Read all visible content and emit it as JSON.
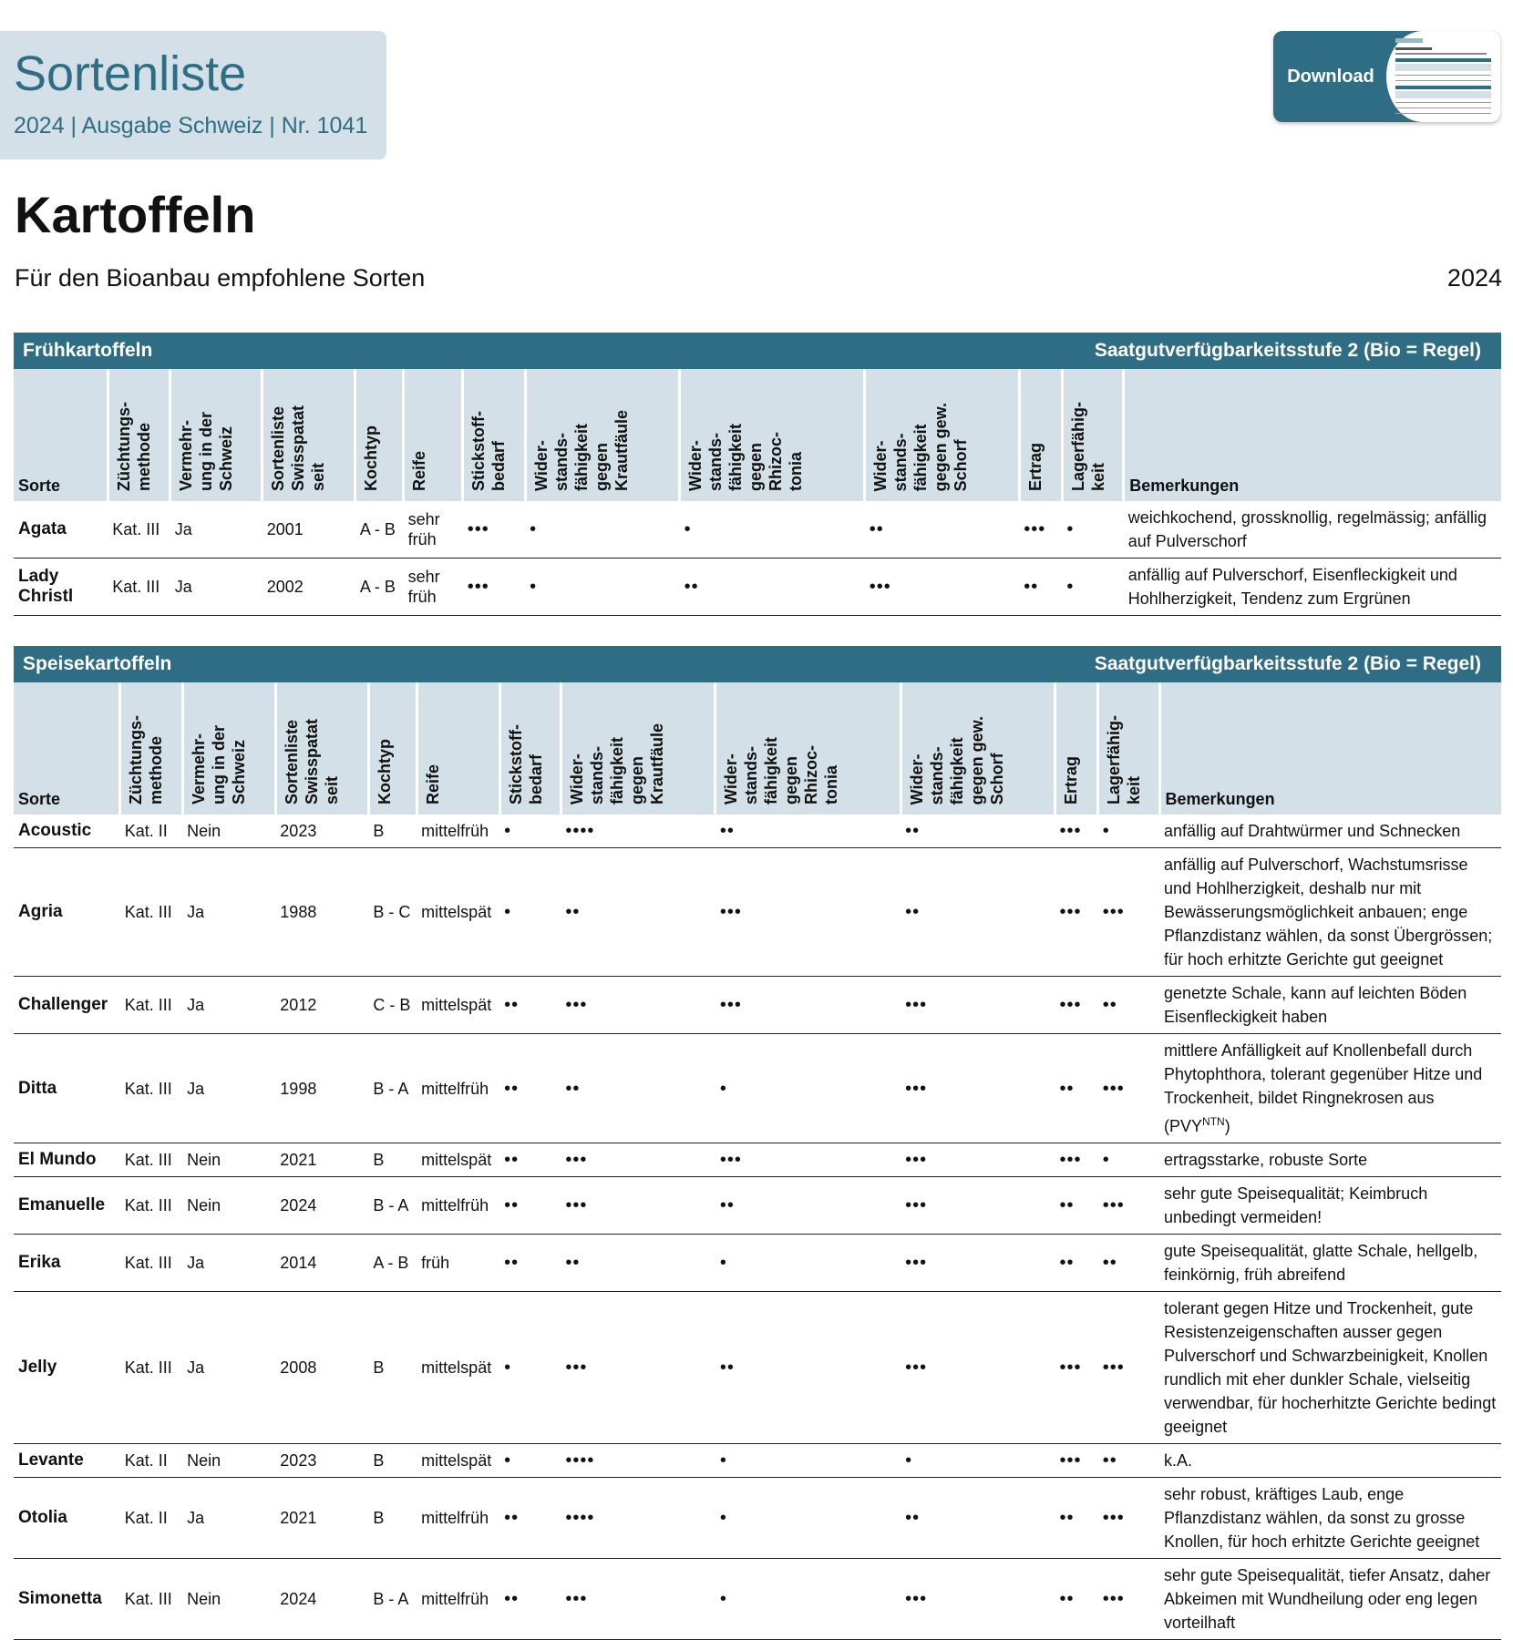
{
  "header": {
    "title": "Sortenliste",
    "subtitle": "2024 | Ausgabe Schweiz | Nr. 1041",
    "download": "Download"
  },
  "page": {
    "title": "Kartoffeln",
    "subtitle": "Für den Bioanbau empfohlene Sorten",
    "year": "2024"
  },
  "tables": [
    {
      "section": "Frühkartoffeln",
      "note": "Saatgutverfügbarkeitsstufe 2 (Bio = Regel)",
      "headers": [
        [
          "Sorte"
        ],
        [
          "Züchtungs-",
          "methode"
        ],
        [
          "Vermehr-",
          "ung in der",
          "Schweiz"
        ],
        [
          "Sortenliste",
          "Swisspatat",
          "seit"
        ],
        [
          "Kochtyp"
        ],
        [
          "Reife"
        ],
        [
          "Stickstoff-",
          "bedarf"
        ],
        [
          "Wider-",
          "stands-",
          "fähigkeit",
          "gegen",
          "Krautfäule"
        ],
        [
          "Wider-",
          "stands-",
          "fähigkeit",
          "gegen",
          "Rhizoc-",
          "tonia"
        ],
        [
          "Wider-",
          "stands-",
          "fähigkeit",
          "gegen gew.",
          "Schorf"
        ],
        [
          "Ertrag"
        ],
        [
          "Lagerfähig-",
          "keit"
        ],
        [
          "Bemerkungen"
        ]
      ],
      "rows": [
        [
          "Agata",
          "Kat. III",
          "Ja",
          "2001",
          "A - B",
          "sehr früh",
          "•••",
          "•",
          "•",
          "••",
          "•••",
          "•",
          "weichkochend, grossknollig, regelmässig; anfällig auf Pulverschorf"
        ],
        [
          "Lady Christl",
          "Kat. III",
          "Ja",
          "2002",
          "A - B",
          "sehr früh",
          "•••",
          "•",
          "••",
          "•••",
          "••",
          "•",
          "anfällig auf Pulverschorf, Eisenfleckigkeit und Hohlherzigkeit, Tendenz zum Ergrünen"
        ]
      ]
    },
    {
      "section": "Speisekartoffeln",
      "note": "Saatgutverfügbarkeitsstufe 2 (Bio = Regel)",
      "headers": [
        [
          "Sorte"
        ],
        [
          "Züchtungs-",
          "methode"
        ],
        [
          "Vermehr-",
          "ung in der",
          "Schweiz"
        ],
        [
          "Sortenliste",
          "Swisspatat",
          "seit"
        ],
        [
          "Kochtyp"
        ],
        [
          "Reife"
        ],
        [
          "Stickstoff-",
          "bedarf"
        ],
        [
          "Wider-",
          "stands-",
          "fähigkeit",
          "gegen",
          "Krautfäule"
        ],
        [
          "Wider-",
          "stands-",
          "fähigkeit",
          "gegen",
          "Rhizoc-",
          "tonia"
        ],
        [
          "Wider-",
          "stands-",
          "fähigkeit",
          "gegen gew.",
          "Schorf"
        ],
        [
          "Ertrag"
        ],
        [
          "Lagerfähig-",
          "keit"
        ],
        [
          "Bemerkungen"
        ]
      ],
      "rows": [
        [
          "Acoustic",
          "Kat. II",
          "Nein",
          "2023",
          "B",
          "mittelfrüh",
          "•",
          "••••",
          "••",
          "••",
          "•••",
          "•",
          "anfällig auf Drahtwürmer und Schnecken"
        ],
        [
          "Agria",
          "Kat. III",
          "Ja",
          "1988",
          "B - C",
          "mittelspät",
          "•",
          "••",
          "•••",
          "••",
          "•••",
          "•••",
          "anfällig auf Pulverschorf, Wachstumsrisse und Hohlherzigkeit, deshalb nur mit Bewässerungsmöglichkeit anbauen; enge Pflanzdistanz wählen, da sonst Übergrössen; für hoch erhitzte Gerichte gut geeignet"
        ],
        [
          "Challenger",
          "Kat. III",
          "Ja",
          "2012",
          "C - B",
          "mittelspät",
          "••",
          "•••",
          "•••",
          "•••",
          "•••",
          "••",
          "genetzte Schale, kann auf leichten Böden Eisenfleckigkeit haben"
        ],
        [
          "Ditta",
          "Kat. III",
          "Ja",
          "1998",
          "B - A",
          "mittelfrüh",
          "••",
          "••",
          "•",
          "•••",
          "••",
          "•••",
          [
            "mittlere Anfälligkeit auf Knollenbefall durch Phytophthora, tolerant gegenüber Hitze und Trockenheit, bildet Ringnekrosen aus (PVY",
            "NTN",
            ")"
          ]
        ],
        [
          "El Mundo",
          "Kat. III",
          "Nein",
          "2021",
          "B",
          "mittelspät",
          "••",
          "•••",
          "•••",
          "•••",
          "•••",
          "•",
          "ertragsstarke, robuste Sorte"
        ],
        [
          "Emanuelle",
          "Kat. III",
          "Nein",
          "2024",
          "B - A",
          "mittelfrüh",
          "••",
          "•••",
          "••",
          "•••",
          "••",
          "•••",
          "sehr gute Speisequalität; Keimbruch unbedingt vermeiden!"
        ],
        [
          "Erika",
          "Kat. III",
          "Ja",
          "2014",
          "A - B",
          "früh",
          "••",
          "••",
          "•",
          "•••",
          "••",
          "••",
          "gute Speisequalität, glatte Schale, hellgelb, feinkörnig, früh abreifend"
        ],
        [
          "Jelly",
          "Kat. III",
          "Ja",
          "2008",
          "B",
          "mittelspät",
          "•",
          "•••",
          "••",
          "•••",
          "•••",
          "•••",
          "tolerant gegen Hitze und Trockenheit, gute Resistenzeigenschaften ausser gegen Pulverschorf und Schwarzbeinigkeit, Knollen rundlich mit eher dunkler Schale, vielseitig verwendbar, für hocherhitzte Gerichte bedingt geeignet"
        ],
        [
          "Levante",
          "Kat. II",
          "Nein",
          "2023",
          "B",
          "mittelspät",
          "•",
          "••••",
          "•",
          "•",
          "•••",
          "••",
          "k.A."
        ],
        [
          "Otolia",
          "Kat. II",
          "Ja",
          "2021",
          "B",
          "mittelfrüh",
          "••",
          "••••",
          "•",
          "••",
          "••",
          "•••",
          "sehr robust, kräftiges Laub, enge Pflanzdistanz wählen, da sonst zu grosse Knollen, für hoch erhitzte Gerichte geeignet"
        ],
        [
          "Simonetta",
          "Kat. III",
          "Nein",
          "2024",
          "B - A",
          "mittelfrüh",
          "••",
          "•••",
          "•",
          "•••",
          "••",
          "•••",
          "sehr gute Speisequalität, tiefer Ansatz, daher Abkeimen mit Wundheilung oder eng legen vorteilhaft"
        ]
      ]
    }
  ]
}
